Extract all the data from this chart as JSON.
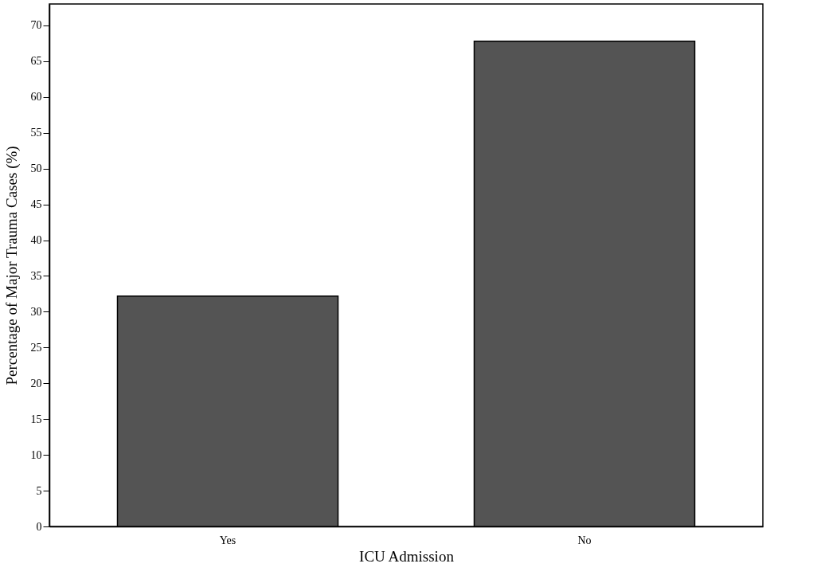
{
  "chart_data": {
    "type": "bar",
    "xlabel": "ICU Admission",
    "ylabel": "Percentage of Major Trauma Cases (%)",
    "categories": [
      "Yes",
      "No"
    ],
    "values": [
      32.2,
      67.8
    ],
    "color": "#545454",
    "ylim": [
      0,
      73
    ],
    "yticks": [
      0,
      5,
      10,
      15,
      20,
      25,
      30,
      35,
      40,
      45,
      50,
      55,
      60,
      65,
      70
    ],
    "grid": false
  }
}
